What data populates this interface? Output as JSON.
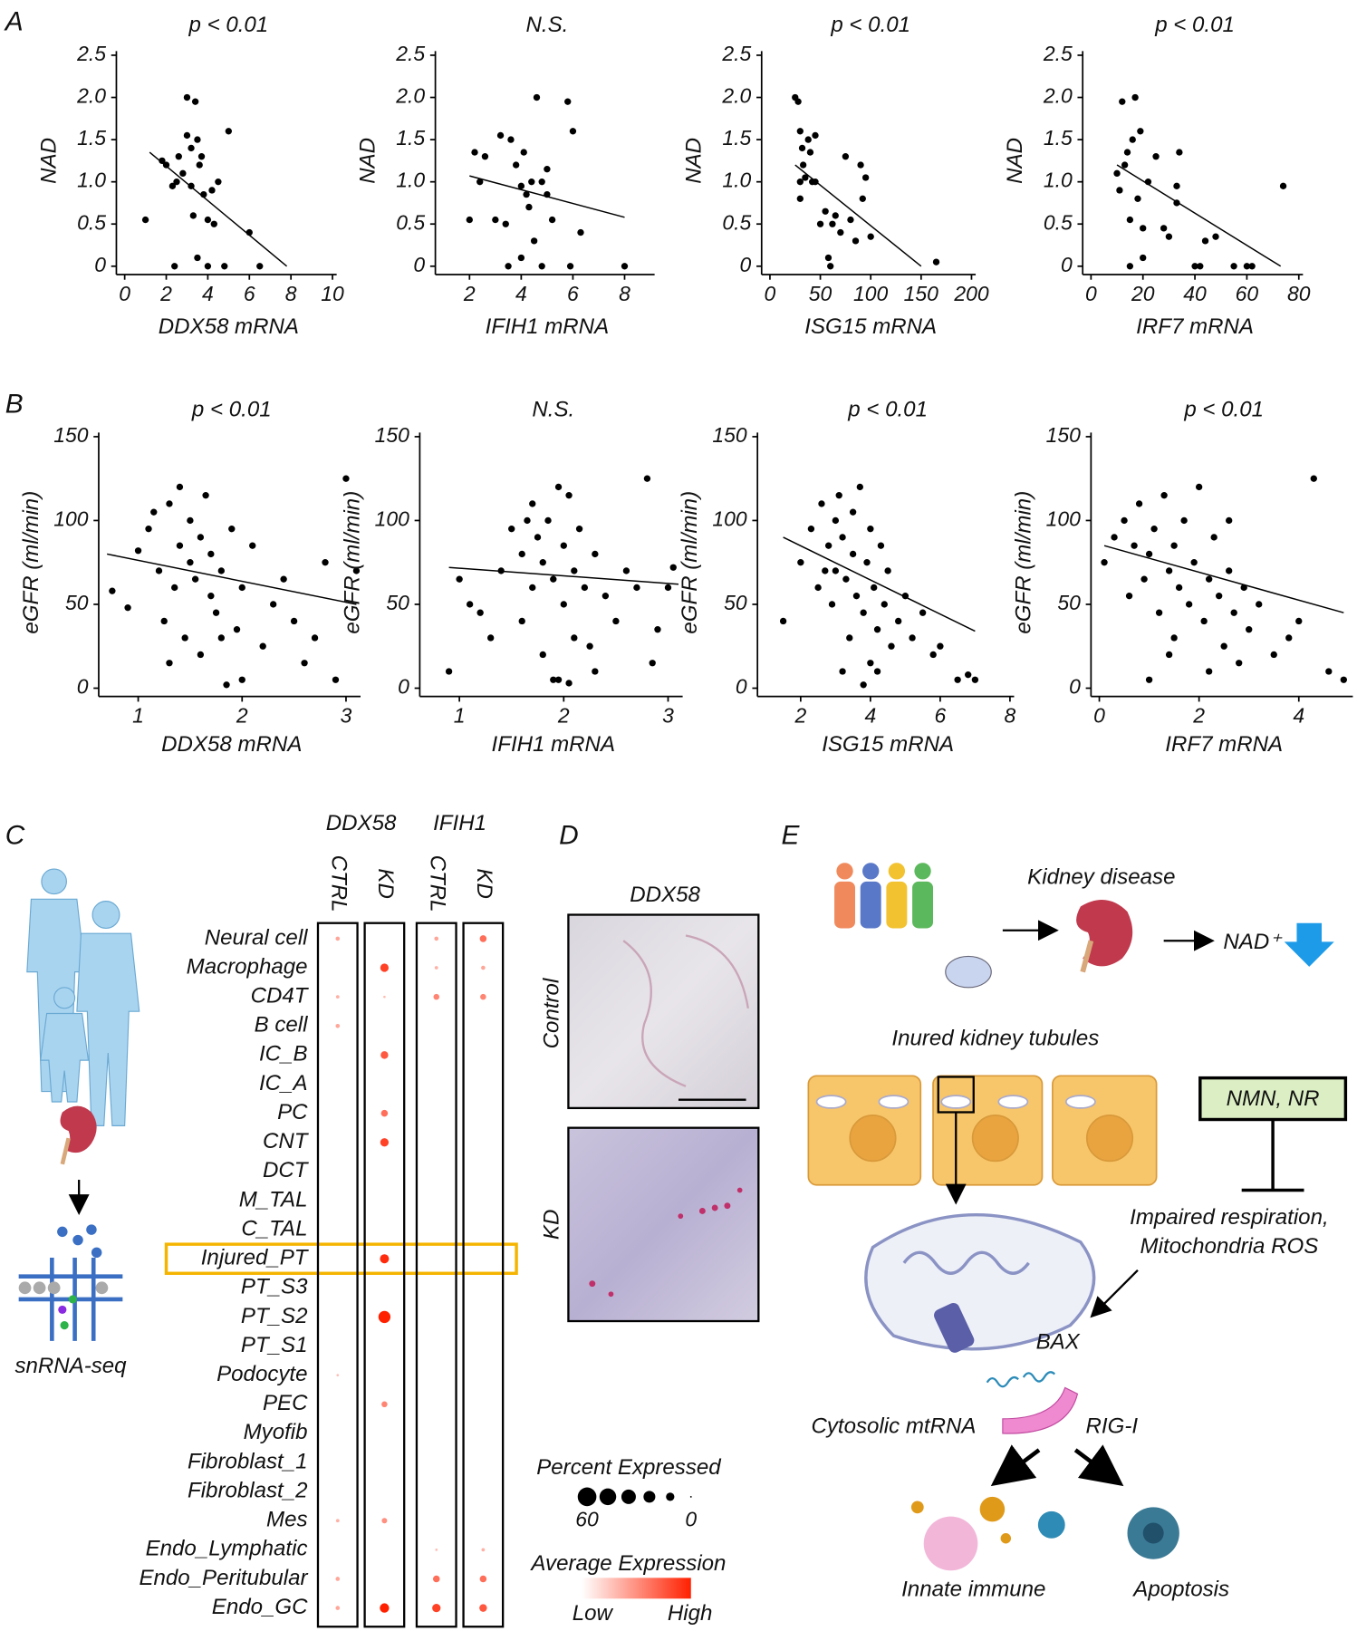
{
  "panel_labels": [
    "A",
    "B",
    "C",
    "D",
    "E"
  ],
  "chart_data": [
    {
      "type": "scatter",
      "title": "p < 0.01",
      "xlabel": "DDX58 mRNA",
      "ylabel": "NAD",
      "color": "#000000",
      "x": [
        1,
        1.8,
        2,
        2.3,
        2.5,
        2.6,
        2.8,
        3,
        3,
        3.2,
        3.2,
        3.4,
        3.5,
        3.6,
        3.3,
        3.5,
        3.8,
        4,
        4,
        4.3,
        4.5,
        4.8,
        5,
        6,
        6.5,
        2.4,
        3.7,
        4.2
      ],
      "values": [
        0.55,
        1.25,
        1.2,
        0.95,
        1.0,
        1.3,
        1.1,
        1.55,
        2.0,
        1.4,
        0.95,
        1.95,
        1.5,
        1.2,
        0.6,
        0.1,
        0.85,
        0.55,
        0,
        0.5,
        1.0,
        0,
        1.6,
        0.4,
        0,
        0,
        1.3,
        0.9
      ],
      "fit": {
        "x": [
          1.2,
          7.8
        ],
        "values": [
          1.35,
          0
        ]
      },
      "xlim": [
        0,
        10
      ],
      "xticks": [
        0,
        2,
        4,
        6,
        8,
        10
      ],
      "ylim": [
        0,
        2.5
      ],
      "yticks": [
        0,
        0.5,
        {
          "value": 1,
          "label": "1.0"
        },
        1.5,
        {
          "value": 2,
          "label": "2.0"
        },
        2.5
      ]
    },
    {
      "type": "scatter",
      "title": "N.S.",
      "xlabel": "IFIH1 mRNA",
      "ylabel": "NAD",
      "color": "#000000",
      "x": [
        2,
        2.2,
        2.4,
        2.6,
        3,
        3.2,
        3.4,
        3.5,
        3.6,
        3.8,
        4,
        4,
        4.1,
        4.3,
        4.4,
        4.5,
        4.6,
        4.8,
        4.8,
        5,
        5,
        5.2,
        5.8,
        6,
        6.3,
        5.9,
        8,
        4.2
      ],
      "values": [
        0.55,
        1.35,
        1.0,
        1.3,
        0.55,
        1.55,
        0.5,
        0,
        1.5,
        1.2,
        0.95,
        0.1,
        1.35,
        0.7,
        1.0,
        0.3,
        2.0,
        0,
        1.0,
        0.85,
        1.15,
        0.55,
        1.95,
        1.6,
        0.4,
        0,
        0,
        0.85
      ],
      "fit": {
        "x": [
          2,
          8
        ],
        "values": [
          1.07,
          0.58
        ]
      },
      "xlim": [
        1,
        9
      ],
      "xticks": [
        2,
        4,
        6,
        8
      ],
      "ylim": [
        0,
        2.5
      ],
      "yticks": [
        0,
        0.5,
        {
          "value": 1,
          "label": "1.0"
        },
        1.5,
        {
          "value": 2,
          "label": "2.0"
        },
        2.5
      ]
    },
    {
      "type": "scatter",
      "title": "p < 0.01",
      "xlabel": "ISG15 mRNA",
      "ylabel": "NAD",
      "color": "#000000",
      "x": [
        25,
        28,
        30,
        32,
        30,
        33,
        35,
        38,
        40,
        42,
        45,
        30,
        50,
        55,
        58,
        60,
        62,
        65,
        70,
        75,
        80,
        85,
        90,
        92,
        95,
        100,
        165,
        45
      ],
      "values": [
        2.0,
        1.95,
        1.6,
        1.4,
        1.0,
        1.2,
        1.05,
        1.5,
        1.35,
        1.0,
        1.0,
        0.8,
        0.5,
        0.65,
        0.1,
        0,
        0.5,
        0.6,
        0.4,
        1.3,
        0.55,
        0.3,
        1.2,
        0.8,
        1.05,
        0.35,
        0.05,
        1.55
      ],
      "fit": {
        "x": [
          25,
          150
        ],
        "values": [
          1.2,
          0
        ]
      },
      "xlim": [
        0,
        200
      ],
      "xticks": [
        0,
        50,
        100,
        150,
        200
      ],
      "ylim": [
        0,
        2.5
      ],
      "yticks": [
        0,
        0.5,
        {
          "value": 1,
          "label": "1.0"
        },
        1.5,
        {
          "value": 2,
          "label": "2.0"
        },
        2.5
      ]
    },
    {
      "type": "scatter",
      "title": "p < 0.01",
      "xlabel": "IRF7 mRNA",
      "ylabel": "NAD",
      "color": "#000000",
      "x": [
        10,
        11,
        12,
        13,
        14,
        15,
        16,
        17,
        18,
        19,
        20,
        20,
        22,
        25,
        28,
        30,
        33,
        33,
        34,
        40,
        42,
        44,
        48,
        55,
        60,
        62,
        74,
        15
      ],
      "values": [
        1.1,
        0.9,
        1.95,
        1.2,
        1.35,
        0.55,
        1.5,
        2.0,
        0.8,
        1.6,
        0.45,
        0.1,
        1.0,
        1.3,
        0.45,
        0.35,
        0.95,
        0.75,
        1.35,
        0,
        0,
        0.3,
        0.35,
        0,
        0,
        0,
        0.95,
        0
      ],
      "fit": {
        "x": [
          10,
          73
        ],
        "values": [
          1.2,
          0
        ]
      },
      "xlim": [
        0,
        80
      ],
      "xticks": [
        0,
        20,
        40,
        60,
        80
      ],
      "ylim": [
        0,
        2.5
      ],
      "yticks": [
        0,
        0.5,
        {
          "value": 1,
          "label": "1.0"
        },
        1.5,
        {
          "value": 2,
          "label": "2.0"
        },
        2.5
      ]
    },
    {
      "type": "scatter",
      "title": "p < 0.01",
      "xlabel": "DDX58 mRNA",
      "ylabel": "eGFR (ml/min)",
      "color": "#000000",
      "x": [
        0.75,
        0.9,
        1.0,
        1.1,
        1.15,
        1.2,
        1.25,
        1.3,
        1.35,
        1.4,
        1.4,
        1.45,
        1.5,
        1.5,
        1.55,
        1.6,
        1.6,
        1.65,
        1.7,
        1.7,
        1.75,
        1.8,
        1.85,
        1.9,
        1.95,
        2.0,
        2.0,
        2.1,
        2.2,
        2.3,
        2.4,
        2.5,
        2.6,
        2.7,
        2.8,
        2.9,
        3.0,
        3.1,
        1.3,
        1.8
      ],
      "values": [
        58,
        48,
        82,
        95,
        105,
        70,
        40,
        110,
        60,
        85,
        120,
        30,
        100,
        75,
        65,
        90,
        20,
        115,
        55,
        80,
        45,
        70,
        2,
        95,
        35,
        60,
        5,
        85,
        25,
        50,
        65,
        40,
        15,
        30,
        75,
        5,
        125,
        70,
        15,
        30
      ],
      "fit": {
        "x": [
          0.7,
          3.1
        ],
        "values": [
          80,
          50
        ]
      },
      "xlim": [
        0.7,
        3.1
      ],
      "xticks": [
        1,
        2,
        3
      ],
      "ylim": [
        0,
        150
      ],
      "yticks": [
        0,
        50,
        100,
        150
      ]
    },
    {
      "type": "scatter",
      "title": "N.S.",
      "xlabel": "IFIH1 mRNA",
      "ylabel": "eGFR (ml/min)",
      "color": "#000000",
      "x": [
        0.9,
        1.0,
        1.1,
        1.2,
        1.3,
        1.4,
        1.5,
        1.6,
        1.6,
        1.7,
        1.7,
        1.75,
        1.8,
        1.8,
        1.85,
        1.9,
        1.9,
        1.95,
        2.0,
        2.0,
        2.05,
        2.1,
        2.1,
        2.15,
        2.2,
        2.3,
        2.3,
        2.4,
        2.5,
        2.6,
        2.7,
        2.8,
        2.9,
        3.0,
        1.95,
        2.05,
        1.65,
        2.25,
        3.05,
        2.85
      ],
      "values": [
        10,
        65,
        50,
        45,
        30,
        70,
        95,
        80,
        40,
        110,
        60,
        90,
        75,
        20,
        100,
        65,
        5,
        120,
        85,
        50,
        115,
        70,
        30,
        95,
        60,
        80,
        10,
        55,
        40,
        70,
        60,
        125,
        35,
        60,
        5,
        3,
        100,
        25,
        72,
        15
      ],
      "fit": {
        "x": [
          0.9,
          3.1
        ],
        "values": [
          72,
          62
        ]
      },
      "xlim": [
        0.7,
        3.1
      ],
      "xticks": [
        1,
        2,
        3
      ],
      "ylim": [
        0,
        150
      ],
      "yticks": [
        0,
        50,
        100,
        150
      ]
    },
    {
      "type": "scatter",
      "title": "p < 0.01",
      "xlabel": "ISG15 mRNA",
      "ylabel": "eGFR (ml/min)",
      "color": "#000000",
      "x": [
        1.5,
        2.0,
        2.3,
        2.5,
        2.6,
        2.8,
        2.9,
        3.0,
        3.0,
        3.1,
        3.2,
        3.3,
        3.4,
        3.5,
        3.5,
        3.6,
        3.7,
        3.8,
        3.9,
        4.0,
        4.0,
        4.1,
        4.2,
        4.3,
        4.4,
        4.5,
        4.6,
        4.8,
        5.0,
        5.2,
        5.5,
        5.8,
        6.0,
        6.5,
        7.0,
        3.2,
        3.8,
        4.2,
        2.7,
        6.8
      ],
      "values": [
        40,
        75,
        95,
        60,
        110,
        85,
        50,
        100,
        70,
        115,
        90,
        65,
        30,
        105,
        80,
        55,
        120,
        45,
        75,
        95,
        15,
        60,
        35,
        85,
        50,
        70,
        25,
        40,
        55,
        30,
        45,
        20,
        25,
        5,
        5,
        10,
        2,
        10,
        70,
        8
      ],
      "fit": {
        "x": [
          1.5,
          7
        ],
        "values": [
          90,
          34
        ]
      },
      "xlim": [
        1,
        8
      ],
      "xticks": [
        2,
        4,
        6,
        8
      ],
      "ylim": [
        0,
        150
      ],
      "yticks": [
        0,
        50,
        100,
        150
      ]
    },
    {
      "type": "scatter",
      "title": "p < 0.01",
      "xlabel": "IRF7 mRNA",
      "ylabel": "eGFR (ml/min)",
      "color": "#000000",
      "x": [
        0.1,
        0.3,
        0.5,
        0.6,
        0.8,
        0.9,
        1.0,
        1.1,
        1.2,
        1.3,
        1.4,
        1.5,
        1.5,
        1.6,
        1.7,
        1.8,
        1.9,
        2.0,
        2.1,
        2.2,
        2.3,
        2.4,
        2.5,
        2.6,
        2.7,
        2.8,
        2.9,
        3.0,
        3.2,
        3.5,
        3.8,
        4.0,
        4.3,
        4.6,
        4.9,
        1.0,
        1.4,
        2.2,
        2.6,
        0.7
      ],
      "values": [
        75,
        90,
        100,
        55,
        110,
        65,
        80,
        95,
        45,
        115,
        70,
        85,
        30,
        60,
        100,
        50,
        75,
        120,
        40,
        65,
        90,
        55,
        25,
        70,
        45,
        15,
        60,
        35,
        50,
        20,
        30,
        40,
        125,
        10,
        5,
        5,
        20,
        10,
        100,
        85
      ],
      "fit": {
        "x": [
          0.1,
          4.9
        ],
        "values": [
          85,
          45
        ]
      },
      "xlim": [
        0,
        5
      ],
      "xticks": [
        0,
        2,
        4
      ],
      "ylim": [
        0,
        150
      ],
      "yticks": [
        0,
        50,
        100,
        150
      ]
    },
    {
      "type": "dotplot",
      "groups": [
        "DDX58",
        "IFIH1"
      ],
      "color": "#ff2000",
      "highlight": 11,
      "highlight_color": "#f5b400",
      "categories": [
        "Neural cell",
        "Macrophage",
        "CD4T",
        "B cell",
        "IC_B",
        "IC_A",
        "PC",
        "CNT",
        "DCT",
        "M_TAL",
        "C_TAL",
        "Injured_PT",
        "PT_S3",
        "PT_S2",
        "PT_S1",
        "Podocyte",
        "PEC",
        "Myofib",
        "Fibroblast_1",
        "Fibroblast_2",
        "Mes",
        "Endo_Lymphatic",
        "Endo_Peritubular",
        "Endo_GC"
      ],
      "series": [
        {
          "name": "CTRL",
          "values": [
            3,
            0,
            2,
            3,
            0,
            0,
            0,
            0,
            0,
            0,
            0,
            0,
            0,
            0,
            0,
            1,
            0,
            0,
            0,
            0,
            2,
            0,
            3,
            3
          ]
        },
        {
          "name": "KD",
          "values": [
            0,
            12,
            1,
            0,
            10,
            0,
            8,
            12,
            0,
            0,
            0,
            14,
            0,
            25,
            0,
            0,
            6,
            0,
            0,
            0,
            5,
            0,
            0,
            15
          ]
        },
        {
          "name": "CTRL",
          "values": [
            3,
            2,
            6,
            0,
            0,
            0,
            0,
            0,
            0,
            0,
            0,
            0,
            0,
            0,
            0,
            0,
            0,
            0,
            0,
            0,
            0,
            1,
            8,
            12
          ]
        },
        {
          "name": "KD",
          "values": [
            8,
            3,
            6,
            0,
            0,
            0,
            0,
            0,
            0,
            0,
            0,
            0,
            0,
            0,
            0,
            0,
            0,
            0,
            0,
            0,
            0,
            2,
            8,
            10
          ]
        }
      ],
      "size_legend": {
        "title": "Percent Expressed",
        "ticks": [
          60,
          0
        ]
      },
      "color_legend": {
        "title": "Average Expression",
        "low": "Low",
        "high": "High"
      }
    }
  ],
  "panel_c": {
    "label": "snRNA-seq"
  },
  "panel_d": {
    "title": "DDX58",
    "rows": [
      "Control",
      "KD"
    ]
  },
  "panel_e": {
    "disease": "Kidney disease",
    "nad": "NAD⁺",
    "tubules": "Inured kidney tubules",
    "treatment": "NMN, NR",
    "stress": [
      "Impaired respiration,",
      "Mitochondria ROS"
    ],
    "bax": "BAX",
    "mtrna": "Cytosolic mtRNA",
    "rigi": "RIG-I",
    "outcomes": [
      "Innate immune",
      "Apoptosis"
    ]
  }
}
